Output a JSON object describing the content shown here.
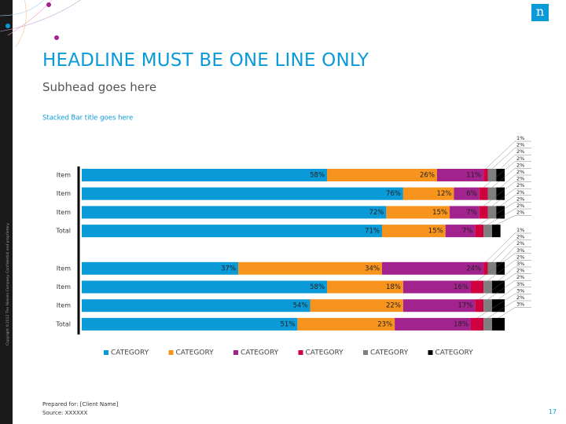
{
  "slide": {
    "headline": "HEADLINE MUST BE ONE LINE ONLY",
    "subhead": "Subhead goes here",
    "prepared_for": "Prepared for: [Client Name]",
    "source": "Source: XXXXXX",
    "page_number": "17",
    "copyright": "Copyright ©2012 The Nielsen Company. Confidential and proprietary.",
    "logo": "n"
  },
  "chart_data": {
    "type": "stacked-bar-horizontal",
    "title": "Stacked Bar title goes here",
    "categories": [
      "Item",
      "Item",
      "Item",
      "Total",
      "Item",
      "Item",
      "Item",
      "Total"
    ],
    "xlim": [
      0,
      100
    ],
    "series": [
      {
        "name": "CATEGORY",
        "color": "#0a9ad8",
        "values": [
          58,
          76,
          72,
          71,
          37,
          58,
          54,
          51
        ],
        "value_labels": [
          "58%",
          "76%",
          "72%",
          "71%",
          "37%",
          "58%",
          "54%",
          "51%"
        ]
      },
      {
        "name": "CATEGORY",
        "color": "#f7941d",
        "values": [
          26,
          12,
          15,
          15,
          34,
          18,
          22,
          23
        ],
        "value_labels": [
          "26%",
          "12%",
          "15%",
          "15%",
          "34%",
          "18%",
          "22%",
          "23%"
        ]
      },
      {
        "name": "CATEGORY",
        "color": "#a3238e",
        "values": [
          11,
          6,
          7,
          7,
          24,
          16,
          17,
          18
        ],
        "value_labels": [
          "11%",
          "6%",
          "7%",
          "7%",
          "24%",
          "16%",
          "17%",
          "18%"
        ]
      },
      {
        "name": "CATEGORY",
        "color": "#d0003f",
        "values": [
          1,
          2,
          2,
          2,
          1,
          3,
          2,
          3
        ],
        "value_labels": [
          "1%",
          "2%",
          "2%",
          "2%",
          "1%",
          "3%",
          "2%",
          "3%"
        ]
      },
      {
        "name": "CATEGORY",
        "color": "#7f7f7f",
        "values": [
          2,
          2,
          2,
          2,
          2,
          2,
          2,
          2
        ],
        "value_labels": [
          "2%",
          "2%",
          "2%",
          "2%",
          "2%",
          "2%",
          "2%",
          "2%"
        ]
      },
      {
        "name": "CATEGORY",
        "color": "#000000",
        "values": [
          2,
          2,
          2,
          2,
          2,
          3,
          3,
          3
        ],
        "value_labels": [
          "2%",
          "2%",
          "2%",
          "2%",
          "2%",
          "3%",
          "3%",
          "3%"
        ]
      }
    ]
  }
}
